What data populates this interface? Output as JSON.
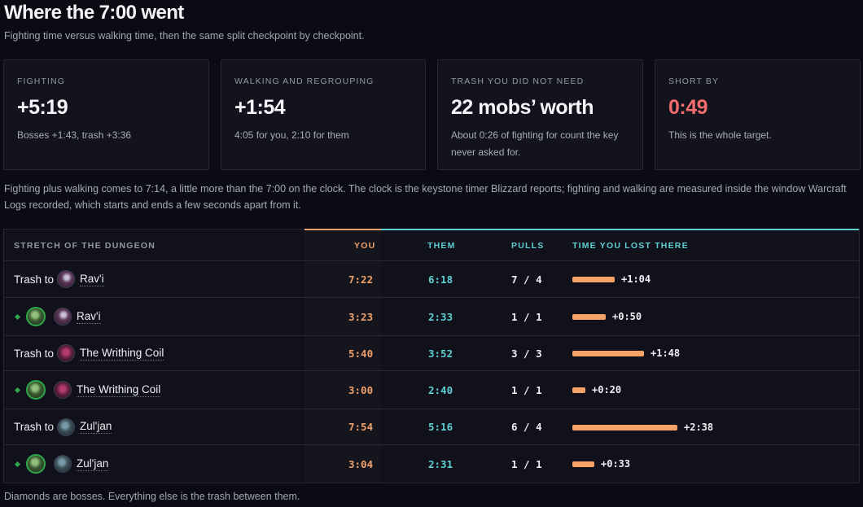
{
  "header": {
    "title": "Where the 7:00 went",
    "subtitle": "Fighting time versus walking time, then the same split checkpoint by checkpoint."
  },
  "cards": [
    {
      "label": "FIGHTING",
      "value": "+5:19",
      "note": "Bosses +1:43, trash +3:36",
      "accent": "#f4f5f8"
    },
    {
      "label": "WALKING AND REGROUPING",
      "value": "+1:54",
      "note": "4:05 for you, 2:10 for them",
      "accent": "#f4f5f8"
    },
    {
      "label": "TRASH YOU DID NOT NEED",
      "value": "22 mobs’ worth",
      "note": "About 0:26 of fighting for count the key never asked for.",
      "accent": "#f4f5f8"
    },
    {
      "label": "SHORT BY",
      "value": "0:49",
      "note": "This is the whole target.",
      "accent": "#f26d6d"
    }
  ],
  "explainer": "Fighting plus walking comes to 7:14, a little more than the 7:00 on the clock. The clock is the keystone timer Blizzard reports; fighting and walking are measured inside the window Warcraft Logs recorded, which starts and ends a few seconds apart from it.",
  "table": {
    "columns": {
      "stretch": "STRETCH OF THE DUNGEON",
      "you": "YOU",
      "them": "THEM",
      "pulls": "PULLS",
      "lost": "TIME YOU LOST THERE"
    },
    "rows": [
      {
        "kind": "trash",
        "prefix": "Trash to",
        "boss": "Rav'i",
        "boss_icon": "ravi",
        "you": "7:22",
        "them": "6:18",
        "pulls": "7 / 4",
        "lost": "+1:04",
        "lost_seconds": 64
      },
      {
        "kind": "boss",
        "prefix": "",
        "boss": "Rav'i",
        "boss_icon": "ravi",
        "you": "3:23",
        "them": "2:33",
        "pulls": "1 / 1",
        "lost": "+0:50",
        "lost_seconds": 50
      },
      {
        "kind": "trash",
        "prefix": "Trash to",
        "boss": "The Writhing Coil",
        "boss_icon": "coil",
        "you": "5:40",
        "them": "3:52",
        "pulls": "3 / 3",
        "lost": "+1:48",
        "lost_seconds": 108
      },
      {
        "kind": "boss",
        "prefix": "",
        "boss": "The Writhing Coil",
        "boss_icon": "coil",
        "you": "3:00",
        "them": "2:40",
        "pulls": "1 / 1",
        "lost": "+0:20",
        "lost_seconds": 20
      },
      {
        "kind": "trash",
        "prefix": "Trash to",
        "boss": "Zul'jan",
        "boss_icon": "zul",
        "you": "7:54",
        "them": "5:16",
        "pulls": "6 / 4",
        "lost": "+2:38",
        "lost_seconds": 158
      },
      {
        "kind": "boss",
        "prefix": "",
        "boss": "Zul'jan",
        "boss_icon": "zul",
        "you": "3:04",
        "them": "2:31",
        "pulls": "1 / 1",
        "lost": "+0:33",
        "lost_seconds": 33
      }
    ]
  },
  "footnote": "Diamonds are bosses. Everything else is the trash between them.",
  "colors": {
    "you": "#f0a06a",
    "them": "#5fd0d4",
    "bar": "#f5a266",
    "boss_diamond": "#2ea84a",
    "short_by": "#f26d6d"
  }
}
